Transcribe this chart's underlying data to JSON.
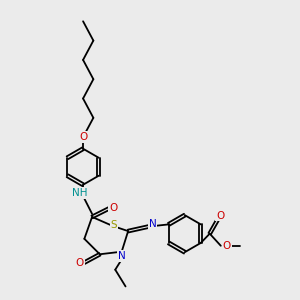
{
  "bg_color": "#ebebeb",
  "atom_colors": {
    "C": "#000000",
    "N": "#0000cc",
    "O": "#cc0000",
    "S": "#999900",
    "H": "#009090"
  },
  "bond_width": 1.3,
  "font_size": 7.5
}
